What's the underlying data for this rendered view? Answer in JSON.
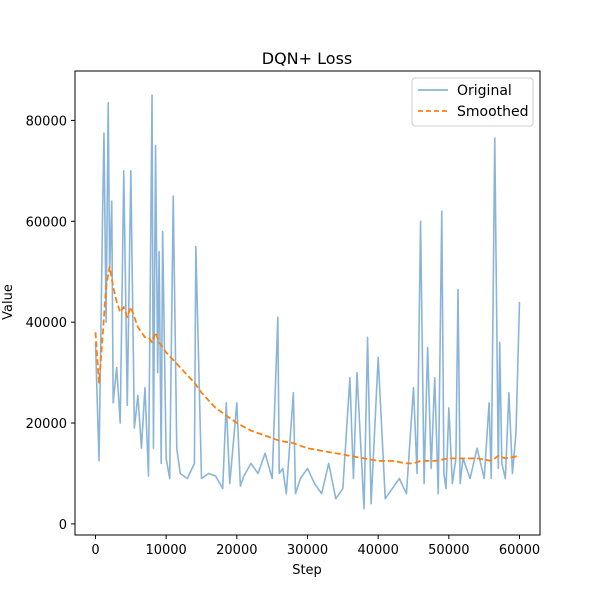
{
  "chart_data": {
    "type": "line",
    "title": "DQN+ Loss",
    "xlabel": "Step",
    "ylabel": "Value",
    "xlim": [
      -2900,
      62900
    ],
    "ylim": [
      -2200,
      89800
    ],
    "xticks": [
      0,
      10000,
      20000,
      30000,
      40000,
      50000,
      60000
    ],
    "yticks": [
      0,
      20000,
      40000,
      60000,
      80000
    ],
    "grid": false,
    "legend_position": "top-right",
    "series": [
      {
        "name": "Original",
        "color": "#8ab5d8",
        "style": "solid",
        "x": [
          0,
          500,
          1000,
          1200,
          1500,
          1800,
          2000,
          2300,
          2500,
          3000,
          3500,
          4000,
          4500,
          5000,
          5500,
          6000,
          6500,
          7000,
          7500,
          7700,
          8000,
          8200,
          8500,
          8800,
          9000,
          9300,
          9500,
          10000,
          10500,
          11000,
          11500,
          12000,
          13000,
          14000,
          14200,
          15000,
          16000,
          17000,
          18000,
          18500,
          19000,
          20000,
          20500,
          21000,
          22000,
          23000,
          24000,
          25000,
          25800,
          26000,
          26500,
          27000,
          28000,
          28300,
          29000,
          30000,
          31000,
          32000,
          33000,
          34000,
          35000,
          36000,
          36500,
          37000,
          38000,
          38500,
          39000,
          40000,
          41000,
          42000,
          43000,
          44000,
          45000,
          45500,
          46000,
          46500,
          47000,
          47500,
          48000,
          48500,
          49000,
          49300,
          49600,
          50000,
          50500,
          51000,
          51300,
          51600,
          52000,
          53000,
          54000,
          55000,
          55700,
          56000,
          56500,
          57000,
          57200,
          57500,
          58000,
          58500,
          59000,
          59500,
          60000
        ],
        "y": [
          36000,
          12500,
          61000,
          77500,
          40000,
          83500,
          50000,
          64000,
          24000,
          31000,
          20000,
          70000,
          23500,
          70000,
          19000,
          25500,
          15000,
          27000,
          9500,
          39000,
          85000,
          15000,
          75000,
          30000,
          54000,
          12000,
          58000,
          13000,
          9000,
          65000,
          15000,
          10000,
          9000,
          12000,
          55000,
          9000,
          10000,
          9500,
          7000,
          24000,
          8000,
          24000,
          7500,
          9500,
          12000,
          10000,
          14000,
          9000,
          41000,
          10000,
          11000,
          6000,
          26000,
          6000,
          9000,
          11000,
          8000,
          6000,
          12000,
          5000,
          7000,
          29000,
          9000,
          30000,
          3000,
          37000,
          4000,
          33000,
          5000,
          7000,
          9000,
          6000,
          27000,
          10000,
          60000,
          8000,
          35000,
          11000,
          29000,
          6000,
          62000,
          10000,
          7000,
          23000,
          8000,
          13000,
          46500,
          8000,
          13000,
          9000,
          15000,
          9000,
          24000,
          9000,
          76500,
          11000,
          36000,
          12000,
          9000,
          26000,
          10000,
          18000,
          44000
        ]
      },
      {
        "name": "Smoothed",
        "color": "#ff7f0e",
        "style": "dashed",
        "x": [
          0,
          500,
          1000,
          1500,
          2000,
          2500,
          3000,
          3500,
          4000,
          4500,
          5000,
          5500,
          6000,
          6500,
          7000,
          7500,
          8000,
          8500,
          9000,
          9500,
          10000,
          11000,
          12000,
          13000,
          14000,
          15000,
          16000,
          17000,
          18000,
          19000,
          20000,
          22000,
          24000,
          26000,
          28000,
          30000,
          32000,
          34000,
          36000,
          38000,
          40000,
          42000,
          44000,
          45000,
          46000,
          48000,
          50000,
          52000,
          54000,
          56000,
          57000,
          58000,
          60000
        ],
        "y": [
          38000,
          28000,
          37000,
          47000,
          51000,
          47000,
          44000,
          42000,
          43000,
          41000,
          43000,
          41000,
          39000,
          38000,
          37000,
          37000,
          36000,
          38000,
          36000,
          35000,
          34000,
          32500,
          31000,
          29500,
          28000,
          26000,
          24500,
          23000,
          22000,
          21000,
          20000,
          18500,
          17500,
          16500,
          16000,
          15000,
          14500,
          14000,
          13500,
          13000,
          12500,
          12500,
          12000,
          12000,
          12500,
          12500,
          13000,
          13000,
          13000,
          12500,
          13500,
          13000,
          13500
        ]
      }
    ]
  }
}
